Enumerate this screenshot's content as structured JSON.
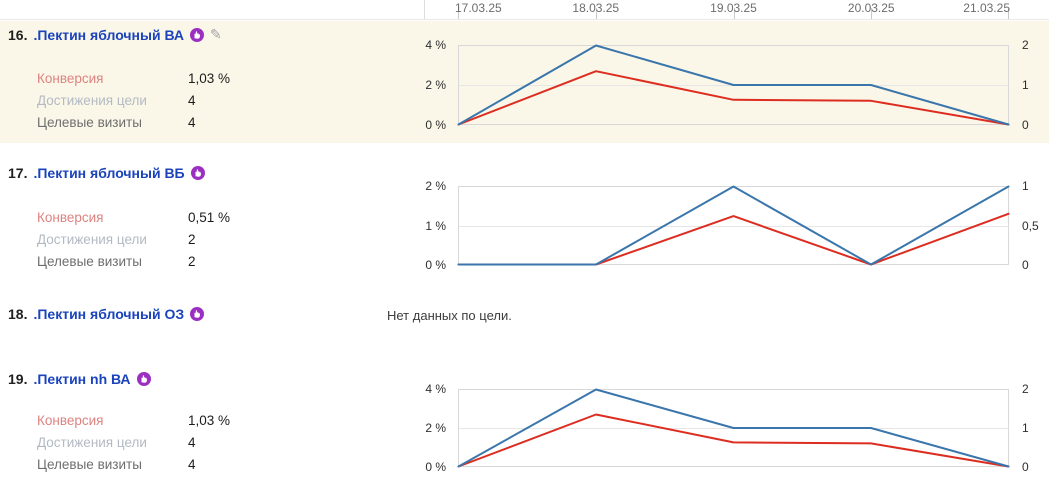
{
  "date_axis": {
    "labels": [
      "17.03.25",
      "18.03.25",
      "19.03.25",
      "20.03.25",
      "21.03.25"
    ]
  },
  "icons": {
    "retargeting_badge": "hand-pointer-badge",
    "edit_pencil": "✎"
  },
  "colors": {
    "highlight_row_bg": "#faf7e9",
    "goal_link": "#1a43bc",
    "badge_purple": "#9b2fc1",
    "line_blue": "#3a76ab",
    "line_red": "#dc2d20",
    "metric_conversion_label": "#dd8380",
    "metric_reaches_label": "#b3bac3",
    "metric_visits_label": "#6e6e6e"
  },
  "rows": [
    {
      "number": "16.",
      "title": ".Пектин яблочный ВА",
      "highlighted": true,
      "has_retargeting_badge": true,
      "has_edit_icon": true,
      "metrics": [
        {
          "label": "Конверсия",
          "value": "1,03 %"
        },
        {
          "label": "Достижения цели",
          "value": "4"
        },
        {
          "label": "Целевые визиты",
          "value": "4"
        }
      ],
      "chart_data": {
        "type": "line",
        "x": [
          "17.03.25",
          "18.03.25",
          "19.03.25",
          "20.03.25",
          "21.03.25"
        ],
        "left_axis": {
          "unit": "%",
          "min": 0,
          "max": 4,
          "tick_labels": [
            "4 %",
            "2 %",
            "0 %"
          ]
        },
        "right_axis": {
          "min": 0,
          "max": 2,
          "tick_labels": [
            "2",
            "1",
            "0"
          ]
        },
        "grid": true,
        "series": [
          {
            "name": "Конверсия",
            "axis": "left",
            "color": "#dc2d20",
            "values": [
              0,
              2.7,
              1.25,
              1.2,
              0
            ]
          },
          {
            "name": "Достижения цели",
            "axis": "right",
            "color": "#3a76ab",
            "values": [
              0,
              2,
              1,
              1,
              0
            ]
          }
        ]
      }
    },
    {
      "number": "17.",
      "title": ".Пектин яблочный ВБ",
      "highlighted": false,
      "has_retargeting_badge": true,
      "has_edit_icon": false,
      "metrics": [
        {
          "label": "Конверсия",
          "value": "0,51 %"
        },
        {
          "label": "Достижения цели",
          "value": "2"
        },
        {
          "label": "Целевые визиты",
          "value": "2"
        }
      ],
      "chart_data": {
        "type": "line",
        "x": [
          "17.03.25",
          "18.03.25",
          "19.03.25",
          "20.03.25",
          "21.03.25"
        ],
        "left_axis": {
          "unit": "%",
          "min": 0,
          "max": 2,
          "tick_labels": [
            "2 %",
            "1 %",
            "0 %"
          ]
        },
        "right_axis": {
          "min": 0,
          "max": 1,
          "tick_labels": [
            "1",
            "0,5",
            "0"
          ]
        },
        "grid": true,
        "series": [
          {
            "name": "Конверсия",
            "axis": "left",
            "color": "#dc2d20",
            "values": [
              0,
              0,
              1.24,
              0,
              1.3
            ]
          },
          {
            "name": "Достижения цели",
            "axis": "right",
            "color": "#3a76ab",
            "values": [
              0,
              0,
              1,
              0,
              1
            ]
          }
        ]
      }
    },
    {
      "number": "18.",
      "title": ".Пектин яблочный ОЗ",
      "highlighted": false,
      "has_retargeting_badge": true,
      "has_edit_icon": false,
      "status_text": "Нет данных по цели."
    },
    {
      "number": "19.",
      "title": ".Пектин nh ВА",
      "highlighted": false,
      "has_retargeting_badge": true,
      "has_edit_icon": false,
      "metrics": [
        {
          "label": "Конверсия",
          "value": "1,03 %"
        },
        {
          "label": "Достижения цели",
          "value": "4"
        },
        {
          "label": "Целевые визиты",
          "value": "4"
        }
      ],
      "chart_data": {
        "type": "line",
        "x": [
          "17.03.25",
          "18.03.25",
          "19.03.25",
          "20.03.25",
          "21.03.25"
        ],
        "left_axis": {
          "unit": "%",
          "min": 0,
          "max": 4,
          "tick_labels": [
            "4 %",
            "2 %",
            "0 %"
          ]
        },
        "right_axis": {
          "min": 0,
          "max": 2,
          "tick_labels": [
            "2",
            "1",
            "0"
          ]
        },
        "grid": true,
        "series": [
          {
            "name": "Конверсия",
            "axis": "left",
            "color": "#dc2d20",
            "values": [
              0,
              2.7,
              1.25,
              1.2,
              0
            ]
          },
          {
            "name": "Достижения цели",
            "axis": "right",
            "color": "#3a76ab",
            "values": [
              0,
              2,
              1,
              1,
              0
            ]
          }
        ]
      }
    }
  ]
}
